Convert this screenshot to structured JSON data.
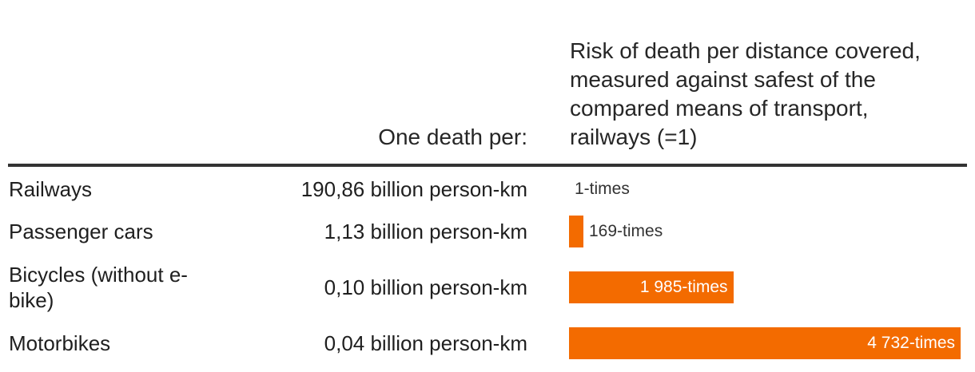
{
  "header": {
    "col2": "One death per:",
    "col3_lines": [
      "Risk of death per distance covered,",
      "measured against safest of the",
      "compared means of transport,",
      "railways (=1)"
    ]
  },
  "colors": {
    "bar": "#f36b00",
    "rule": "#333333"
  },
  "chart_data": {
    "type": "bar",
    "orientation": "horizontal",
    "categories": [
      "Railways",
      "Passenger cars",
      "Bicycles (without e-bike)",
      "Motorbikes"
    ],
    "one_death_per": [
      "190,86 billion person-km",
      "1,13 billion person-km",
      "0,10 billion person-km",
      "0,04 billion person-km"
    ],
    "values": [
      1,
      169,
      1985,
      4732
    ],
    "value_labels": [
      "1-times",
      "169-times",
      "1 985-times",
      "4 732-times"
    ],
    "xlim": [
      0,
      4732
    ]
  }
}
